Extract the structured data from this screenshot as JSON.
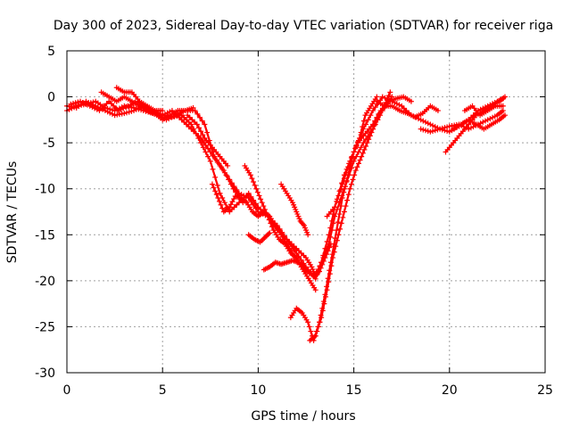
{
  "chart_data": {
    "type": "scatter",
    "title": "Day 300 of 2023, Sidereal Day-to-day VTEC variation (SDTVAR) for receiver riga",
    "xlabel": "GPS time / hours",
    "ylabel": "SDTVAR / TECUs",
    "xlim": [
      0,
      25
    ],
    "ylim": [
      -30,
      5
    ],
    "xticks": [
      0,
      5,
      10,
      15,
      20,
      25
    ],
    "yticks": [
      -30,
      -25,
      -20,
      -15,
      -10,
      -5,
      0,
      5
    ],
    "grid": true,
    "marker": "+",
    "color": "#ff0000",
    "series": [
      {
        "name": "s1",
        "x": [
          0.0,
          0.5,
          1.0,
          1.5,
          2.0,
          2.5,
          3.0,
          3.5,
          4.0,
          4.5,
          5.0,
          5.5,
          6.0,
          6.5,
          7.0,
          7.5,
          8.0,
          8.5,
          9.0,
          9.5,
          10.0,
          10.5,
          11.0,
          11.5,
          12.0,
          12.5,
          13.0,
          13.3,
          13.7,
          14.0,
          14.5,
          15.0,
          15.5,
          16.0,
          16.5,
          17.0,
          17.5,
          18.0,
          18.5,
          19.0,
          19.5,
          20.0,
          20.5,
          21.0,
          21.5,
          22.0,
          22.5,
          22.8
        ],
        "y": [
          -1.5,
          -1.0,
          -0.8,
          -0.5,
          -1.2,
          -1.5,
          -1.0,
          -1.2,
          -1.5,
          -1.8,
          -2.0,
          -1.5,
          -2.5,
          -3.5,
          -4.5,
          -6.0,
          -7.5,
          -9.0,
          -10.5,
          -11.0,
          -12.5,
          -13.0,
          -14.5,
          -15.5,
          -17.0,
          -18.5,
          -19.8,
          -18.0,
          -15.0,
          -12.0,
          -8.5,
          -6.0,
          -3.5,
          -1.5,
          0.0,
          -0.5,
          -1.0,
          -2.0,
          -2.5,
          -3.0,
          -3.5,
          -3.2,
          -3.0,
          -3.5,
          -3.0,
          -2.5,
          -2.0,
          -1.5
        ]
      },
      {
        "name": "s2",
        "x": [
          0.0,
          0.5,
          1.0,
          1.5,
          2.0,
          2.5,
          3.0,
          3.5,
          4.0,
          4.5,
          5.0,
          5.5,
          6.0,
          6.5,
          7.0,
          7.5,
          8.0,
          8.5,
          9.0,
          9.5,
          10.0,
          10.5,
          11.0,
          11.5,
          12.0,
          12.5,
          12.8,
          13.0,
          13.3,
          13.7,
          14.0,
          14.5,
          15.0,
          15.5,
          16.0,
          16.5,
          17.0
        ],
        "y": [
          -1.0,
          -1.2,
          -0.5,
          -1.0,
          -1.5,
          -2.0,
          -1.8,
          -1.5,
          -1.0,
          -1.5,
          -2.0,
          -2.2,
          -2.0,
          -3.0,
          -5.0,
          -7.0,
          -10.5,
          -12.5,
          -11.5,
          -10.5,
          -12.0,
          -13.0,
          -14.0,
          -15.5,
          -16.5,
          -17.5,
          -18.5,
          -19.5,
          -18.0,
          -16.0,
          -13.0,
          -10.0,
          -7.0,
          -5.0,
          -3.5,
          -1.5,
          0.0
        ]
      },
      {
        "name": "s3",
        "x": [
          0.2,
          0.7,
          1.2,
          1.7,
          2.2,
          2.7,
          3.2,
          3.7,
          4.2,
          4.7,
          5.2,
          5.7,
          6.2,
          6.7,
          7.2,
          7.7,
          8.2,
          8.7,
          9.2
        ],
        "y": [
          -0.8,
          -0.5,
          -1.0,
          -1.5,
          -0.5,
          -1.5,
          -1.0,
          -0.5,
          -1.5,
          -2.0,
          -2.5,
          -2.0,
          -1.5,
          -1.5,
          -3.0,
          -6.5,
          -8.0,
          -10.0,
          -11.5
        ]
      },
      {
        "name": "s4",
        "x": [
          1.8,
          2.2,
          2.6,
          3.0,
          3.4,
          3.8,
          4.2,
          4.6,
          5.0,
          5.4,
          5.8,
          6.2,
          6.6
        ],
        "y": [
          0.5,
          0.0,
          -0.5,
          0.0,
          -0.5,
          -1.0,
          -1.5,
          -1.8,
          -2.5,
          -2.0,
          -1.5,
          -1.5,
          -1.2
        ]
      },
      {
        "name": "s5",
        "x": [
          2.6,
          3.0,
          3.4,
          3.8,
          4.2,
          4.6,
          5.0
        ],
        "y": [
          1.0,
          0.5,
          0.5,
          -0.5,
          -1.0,
          -1.5,
          -1.5
        ]
      },
      {
        "name": "s6",
        "x": [
          6.3,
          6.8,
          7.2,
          7.6,
          8.0,
          8.4
        ],
        "y": [
          -2.0,
          -3.0,
          -4.5,
          -5.5,
          -6.5,
          -7.5
        ]
      },
      {
        "name": "s7",
        "x": [
          7.6,
          7.9,
          8.2,
          8.5,
          8.8,
          9.1,
          9.4,
          9.7,
          10.0,
          10.3,
          10.6,
          10.9,
          11.2,
          11.5,
          11.8,
          12.1,
          12.4,
          12.7,
          13.0
        ],
        "y": [
          -9.5,
          -11.0,
          -12.5,
          -12.0,
          -10.8,
          -11.0,
          -11.5,
          -12.5,
          -13.0,
          -12.5,
          -13.0,
          -14.0,
          -15.0,
          -16.0,
          -17.0,
          -18.0,
          -19.0,
          -20.0,
          -21.0
        ]
      },
      {
        "name": "s8",
        "x": [
          9.3,
          9.6,
          9.9,
          10.2,
          10.5,
          10.8,
          11.1,
          11.4,
          11.7,
          12.0,
          12.3,
          12.6,
          12.9,
          13.2,
          13.5,
          13.8
        ],
        "y": [
          -7.5,
          -8.5,
          -10.0,
          -11.5,
          -13.0,
          -14.5,
          -15.5,
          -16.0,
          -17.0,
          -17.5,
          -18.5,
          -19.0,
          -19.5,
          -19.0,
          -17.5,
          -16.0
        ]
      },
      {
        "name": "s9",
        "x": [
          11.2,
          11.5,
          11.8,
          12.0,
          12.2,
          12.4,
          12.6
        ],
        "y": [
          -9.5,
          -10.5,
          -11.5,
          -12.5,
          -13.5,
          -14.0,
          -15.0
        ]
      },
      {
        "name": "s10",
        "x": [
          9.5,
          9.8,
          10.1,
          10.4,
          10.6
        ],
        "y": [
          -15.0,
          -15.5,
          -15.8,
          -15.2,
          -14.8
        ]
      },
      {
        "name": "s11",
        "x": [
          10.3,
          10.6,
          10.9,
          11.2,
          11.5,
          11.8,
          12.1,
          12.4
        ],
        "y": [
          -18.8,
          -18.5,
          -18.0,
          -18.2,
          -18.0,
          -17.8,
          -18.0,
          -18.5
        ]
      },
      {
        "name": "s12",
        "x": [
          11.7,
          12.0,
          12.3,
          12.6,
          12.9,
          13.2,
          13.5,
          13.8,
          14.1,
          14.4,
          14.7,
          15.0,
          15.3,
          15.6,
          15.9,
          16.2
        ],
        "y": [
          -24.0,
          -23.0,
          -23.5,
          -24.5,
          -26.5,
          -24.5,
          -21.5,
          -18.0,
          -14.5,
          -11.0,
          -8.5,
          -6.0,
          -4.5,
          -2.0,
          -1.0,
          0.0
        ]
      },
      {
        "name": "s13",
        "x": [
          12.7,
          13.0,
          13.3,
          13.6,
          13.9,
          14.2,
          14.5,
          14.8,
          15.1,
          15.4,
          15.7,
          16.0,
          16.3,
          16.6,
          16.9
        ],
        "y": [
          -26.5,
          -26.0,
          -24.0,
          -21.0,
          -17.5,
          -15.0,
          -12.5,
          -10.0,
          -8.0,
          -6.5,
          -5.0,
          -3.5,
          -2.0,
          -1.0,
          0.5
        ]
      },
      {
        "name": "s14",
        "x": [
          13.6,
          14.0,
          14.4,
          14.8,
          15.2,
          15.6,
          16.0,
          16.4,
          16.8,
          17.2,
          17.6,
          18.0
        ],
        "y": [
          -13.0,
          -12.0,
          -9.5,
          -7.0,
          -5.0,
          -4.0,
          -3.0,
          -1.5,
          -0.5,
          -0.2,
          0.0,
          -0.5
        ]
      },
      {
        "name": "s15",
        "x": [
          16.2,
          16.6,
          17.0,
          17.4,
          17.8,
          18.2,
          18.6,
          19.0,
          19.4
        ],
        "y": [
          -0.5,
          -1.0,
          -1.0,
          -1.5,
          -1.8,
          -2.2,
          -1.8,
          -1.0,
          -1.5
        ]
      },
      {
        "name": "s16",
        "x": [
          18.5,
          19.0,
          19.5,
          20.0,
          20.5,
          21.0,
          21.5,
          22.0,
          22.5,
          22.8
        ],
        "y": [
          -3.5,
          -3.8,
          -3.5,
          -3.8,
          -3.2,
          -2.5,
          -1.5,
          -1.0,
          -0.5,
          -0.2
        ]
      },
      {
        "name": "s17",
        "x": [
          19.8,
          20.2,
          20.6,
          21.0,
          21.4,
          21.8,
          22.2,
          22.6,
          22.9
        ],
        "y": [
          -6.0,
          -5.0,
          -4.0,
          -3.0,
          -2.0,
          -1.5,
          -1.0,
          -0.5,
          0.0
        ]
      },
      {
        "name": "s18",
        "x": [
          20.2,
          20.6,
          21.0,
          21.4,
          21.8,
          22.2,
          22.6,
          22.9
        ],
        "y": [
          -3.5,
          -3.0,
          -2.5,
          -3.0,
          -3.5,
          -3.0,
          -2.5,
          -2.0
        ]
      },
      {
        "name": "s19",
        "x": [
          20.8,
          21.2,
          21.6,
          22.0,
          22.4,
          22.8
        ],
        "y": [
          -1.5,
          -1.0,
          -2.0,
          -1.5,
          -1.0,
          -1.0
        ]
      }
    ]
  }
}
